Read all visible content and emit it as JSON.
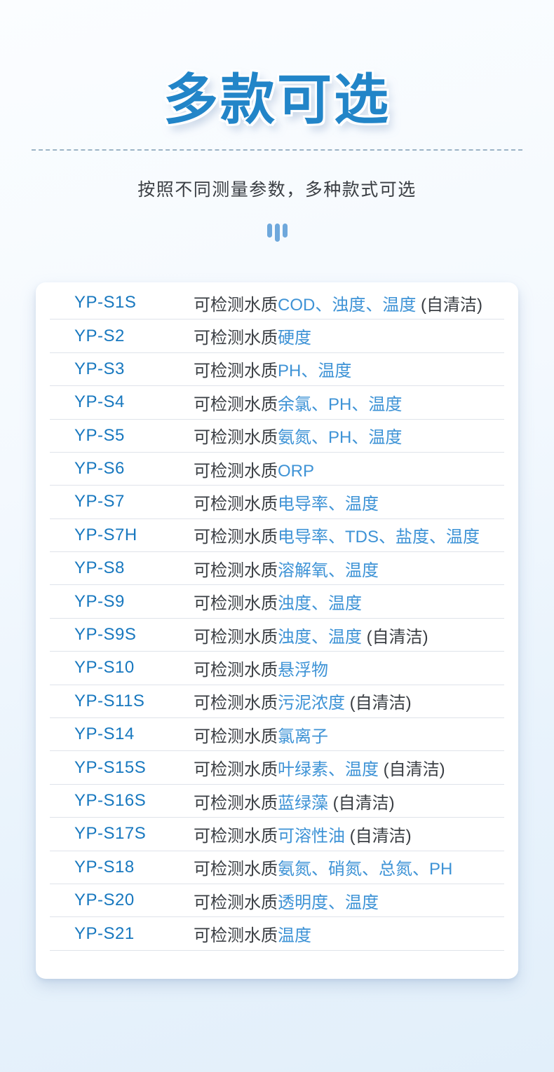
{
  "header": {
    "title": "多款可选",
    "subtitle": "按照不同测量参数，多种款式可选"
  },
  "icons": {
    "bars_icon": "three-vertical-bars"
  },
  "table": {
    "description_prefix": "可检测水质",
    "self_clean_suffix": " (自清洁)",
    "rows": [
      {
        "model": "YP-S1S",
        "params": "COD、浊度、温度",
        "self_clean": true
      },
      {
        "model": "YP-S2",
        "params": "硬度",
        "self_clean": false
      },
      {
        "model": "YP-S3",
        "params": "PH、温度",
        "self_clean": false
      },
      {
        "model": "YP-S4",
        "params": "余氯、PH、温度",
        "self_clean": false
      },
      {
        "model": "YP-S5",
        "params": "氨氮、PH、温度",
        "self_clean": false
      },
      {
        "model": "YP-S6",
        "params": "ORP",
        "self_clean": false
      },
      {
        "model": "YP-S7",
        "params": "电导率、温度",
        "self_clean": false
      },
      {
        "model": "YP-S7H",
        "params": "电导率、TDS、盐度、温度",
        "self_clean": false
      },
      {
        "model": "YP-S8",
        "params": "溶解氧、温度",
        "self_clean": false
      },
      {
        "model": "YP-S9",
        "params": "浊度、温度",
        "self_clean": false
      },
      {
        "model": "YP-S9S",
        "params": "浊度、温度",
        "self_clean": true
      },
      {
        "model": "YP-S10",
        "params": "悬浮物",
        "self_clean": false
      },
      {
        "model": "YP-S11S",
        "params": "污泥浓度",
        "self_clean": true
      },
      {
        "model": "YP-S14",
        "params": "氯离子",
        "self_clean": false
      },
      {
        "model": "YP-S15S",
        "params": "叶绿素、温度",
        "self_clean": true
      },
      {
        "model": "YP-S16S",
        "params": "蓝绿藻",
        "self_clean": true
      },
      {
        "model": "YP-S17S",
        "params": "可溶性油",
        "self_clean": true
      },
      {
        "model": "YP-S18",
        "params": "氨氮、硝氮、总氮、PH",
        "self_clean": false
      },
      {
        "model": "YP-S20",
        "params": "透明度、温度",
        "self_clean": false
      },
      {
        "model": "YP-S21",
        "params": "温度",
        "self_clean": false
      }
    ]
  },
  "colors": {
    "title_blue": "#2285c8",
    "model_blue": "#1878bf",
    "param_blue": "#3e93d6",
    "text_dark": "#3a3e43",
    "divider": "#dfe3ea",
    "dash_line": "#7e9cb4",
    "bars_icon": "#6fa8dc",
    "bg_top": "#fbfdff",
    "bg_bottom": "#e2effa",
    "card_bg": "#ffffff"
  }
}
